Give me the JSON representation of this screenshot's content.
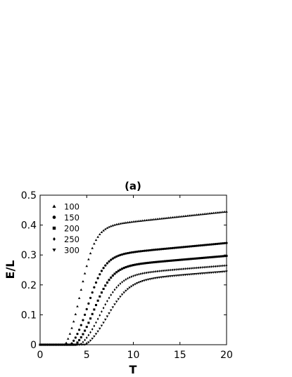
{
  "chart_data": {
    "type": "scatter",
    "title": "(a)",
    "xlabel": "T",
    "ylabel": "E/L",
    "xlim": [
      0,
      20
    ],
    "ylim": [
      0,
      0.5
    ],
    "xticks": [
      "0",
      "5",
      "10",
      "15",
      "20"
    ],
    "yticks": [
      "0",
      "0.1",
      "0.2",
      "0.3",
      "0.4",
      "0.5"
    ],
    "grid": false,
    "legend_position": "top-left",
    "series": [
      {
        "name": "100",
        "marker": "triangle-up",
        "onset": 2.7,
        "mid": 4.3,
        "width": 0.8,
        "plateau": 0.405,
        "tail": 0.04
      },
      {
        "name": "150",
        "marker": "circle",
        "onset": 3.3,
        "mid": 5.1,
        "width": 0.9,
        "plateau": 0.305,
        "tail": 0.035
      },
      {
        "name": "200",
        "marker": "square",
        "onset": 3.8,
        "mid": 5.7,
        "width": 1.0,
        "plateau": 0.265,
        "tail": 0.032
      },
      {
        "name": "250",
        "marker": "diamond",
        "onset": 4.3,
        "mid": 6.4,
        "width": 1.1,
        "plateau": 0.235,
        "tail": 0.03
      },
      {
        "name": "300",
        "marker": "triangle-down",
        "onset": 4.9,
        "mid": 7.1,
        "width": 1.2,
        "plateau": 0.215,
        "tail": 0.03
      }
    ]
  }
}
